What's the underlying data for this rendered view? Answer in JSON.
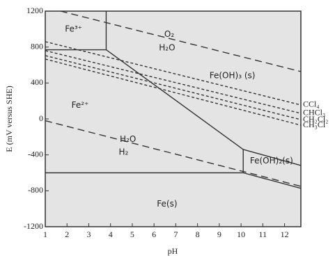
{
  "chart_data": {
    "type": "line",
    "x_label": "pH",
    "y_label": "E (mV versus SHE)",
    "xlim": [
      1,
      12.75
    ],
    "ylim": [
      -1200,
      1200
    ],
    "xticks": [
      1,
      2,
      3,
      4,
      5,
      6,
      7,
      8,
      9,
      10,
      11,
      12
    ],
    "yticks": [
      -1200,
      -800,
      -400,
      0,
      400,
      800,
      1200
    ],
    "color": "#333333",
    "series": [
      {
        "style": "dashed",
        "x": [
          1.7,
          12.75
        ],
        "values": [
          1200,
          527
        ]
      },
      {
        "style": "dashed",
        "x": [
          1,
          12.75
        ],
        "values": [
          -20,
          -750
        ]
      },
      {
        "style": "solid",
        "x": [
          1,
          3.8
        ],
        "values": [
          770,
          770
        ]
      },
      {
        "style": "solid",
        "x": [
          3.8,
          3.8
        ],
        "values": [
          770,
          1200
        ]
      },
      {
        "style": "solid",
        "x": [
          3.8,
          10.1
        ],
        "values": [
          770,
          -340
        ]
      },
      {
        "style": "solid",
        "x": [
          10.1,
          10.1
        ],
        "values": [
          -340,
          -600
        ]
      },
      {
        "style": "solid",
        "x": [
          1,
          10.1
        ],
        "values": [
          -600,
          -600
        ]
      },
      {
        "style": "solid",
        "x": [
          10.1,
          12.75
        ],
        "values": [
          -340,
          -518
        ]
      },
      {
        "style": "solid",
        "x": [
          10.1,
          12.75
        ],
        "values": [
          -600,
          -773
        ]
      },
      {
        "name": "CCl₄",
        "style": "dotted",
        "x": [
          1,
          12.75
        ],
        "values": [
          860,
          155
        ]
      },
      {
        "name": "CHCl₃",
        "style": "dotted",
        "x": [
          1,
          12.75
        ],
        "values": [
          760,
          62
        ]
      },
      {
        "name": "CH₂Cl₂",
        "style": "dotted",
        "x": [
          1,
          12.75
        ],
        "values": [
          705,
          -8
        ]
      },
      {
        "name": "CH₃Cl",
        "style": "dotted",
        "x": [
          1,
          12.75
        ],
        "values": [
          666,
          -70
        ]
      }
    ],
    "annotations": [
      {
        "text": "Fe³⁺",
        "x": 2.3,
        "y": 1000
      },
      {
        "text": "O₂",
        "x": 6.7,
        "y": 940
      },
      {
        "text": "H₂O",
        "x": 6.6,
        "y": 790
      },
      {
        "text": "Fe(OH)₃ (s)",
        "x": 9.6,
        "y": 480
      },
      {
        "text": "Fe²⁺",
        "x": 2.6,
        "y": 150
      },
      {
        "text": "H₂O",
        "x": 4.8,
        "y": -230
      },
      {
        "text": "H₂",
        "x": 4.6,
        "y": -370
      },
      {
        "text": "Fe(OH)₂(s)",
        "x": 11.4,
        "y": -470
      },
      {
        "text": "Fe(s)",
        "x": 6.6,
        "y": -950
      }
    ]
  }
}
